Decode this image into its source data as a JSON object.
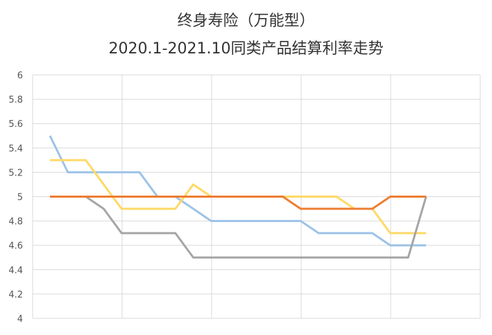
{
  "chart_data": {
    "type": "line",
    "title": "终身寿险（万能型）",
    "subtitle": "2020.1-2021.10同类产品结算利率走势",
    "xlabel": "",
    "ylabel": "",
    "ylim": [
      4,
      6
    ],
    "yticks": [
      "6",
      "5.8",
      "5.6",
      "5.4",
      "5.2",
      "5",
      "4.8",
      "4.6",
      "4.4",
      "4.2",
      "4"
    ],
    "grid": true,
    "legend": "none",
    "x": [
      1,
      2,
      3,
      4,
      5,
      6,
      7,
      8,
      9,
      10,
      11,
      12,
      13,
      14,
      15,
      16,
      17,
      18,
      19,
      20,
      21,
      22
    ],
    "series": [
      {
        "color": "#9dc3e6",
        "values": [
          5.5,
          5.2,
          5.2,
          5.2,
          5.2,
          5.2,
          5.0,
          5.0,
          4.9,
          4.8,
          4.8,
          4.8,
          4.8,
          4.8,
          4.8,
          4.7,
          4.7,
          4.7,
          4.7,
          4.6,
          4.6,
          4.6
        ]
      },
      {
        "color": "#ffd966",
        "values": [
          5.3,
          5.3,
          5.3,
          5.1,
          4.9,
          4.9,
          4.9,
          4.9,
          5.1,
          5.0,
          5.0,
          5.0,
          5.0,
          5.0,
          5.0,
          5.0,
          5.0,
          4.9,
          4.9,
          4.7,
          4.7,
          4.7
        ]
      },
      {
        "color": "#a5a5a5",
        "values": [
          5.0,
          5.0,
          5.0,
          4.9,
          4.7,
          4.7,
          4.7,
          4.7,
          4.5,
          4.5,
          4.5,
          4.5,
          4.5,
          4.5,
          4.5,
          4.5,
          4.5,
          4.5,
          4.5,
          4.5,
          4.5,
          5.0
        ]
      },
      {
        "color": "#ed7d31",
        "values": [
          5.0,
          5.0,
          5.0,
          5.0,
          5.0,
          5.0,
          5.0,
          5.0,
          5.0,
          5.0,
          5.0,
          5.0,
          5.0,
          5.0,
          4.9,
          4.9,
          4.9,
          4.9,
          4.9,
          5.0,
          5.0,
          5.0
        ]
      }
    ]
  }
}
